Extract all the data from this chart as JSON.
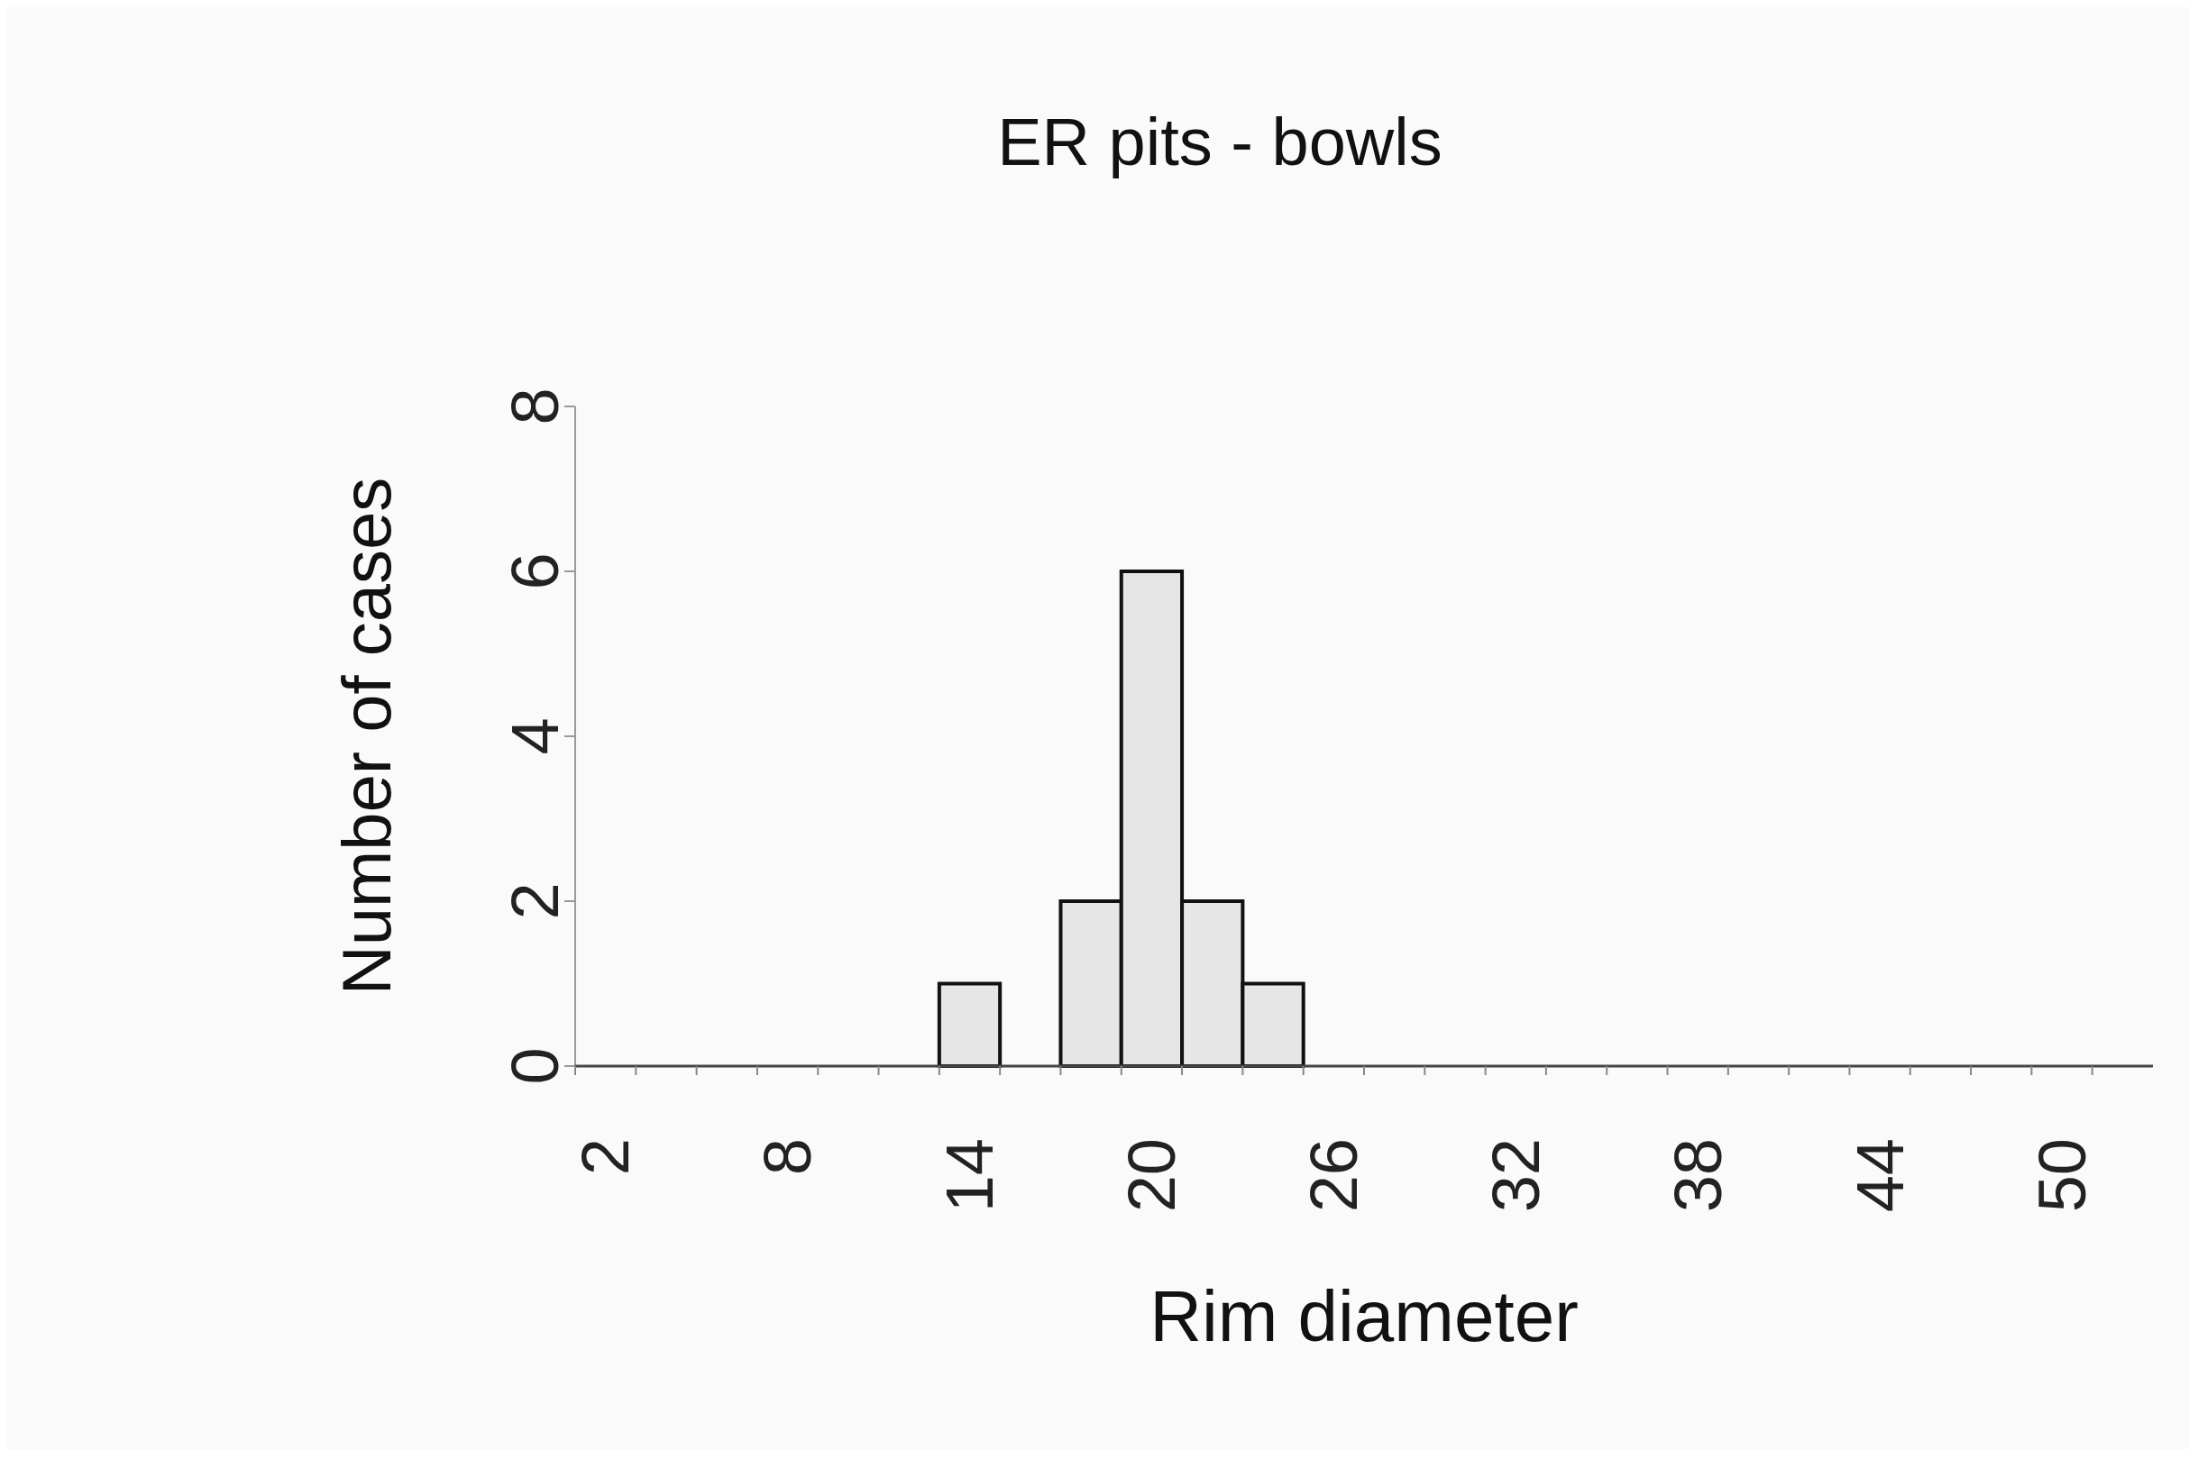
{
  "chart_data": {
    "type": "bar",
    "title": "ER pits - bowls",
    "xlabel": "Rim diameter",
    "ylabel": "Number of cases",
    "categories": [
      "2",
      null,
      null,
      "8",
      null,
      null,
      "14",
      null,
      null,
      "20",
      null,
      null,
      "26",
      null,
      null,
      "32",
      null,
      null,
      "38",
      null,
      null,
      "44",
      null,
      null,
      "50",
      null
    ],
    "values": [
      0,
      0,
      0,
      0,
      0,
      0,
      1,
      0,
      2,
      6,
      2,
      1,
      0,
      0,
      0,
      0,
      0,
      0,
      0,
      0,
      0,
      0,
      0,
      0,
      0,
      0
    ],
    "color": "#e6e6e6",
    "ylim": [
      0,
      8
    ],
    "yticks": [
      0,
      2,
      4,
      6,
      8
    ],
    "grid": false
  }
}
